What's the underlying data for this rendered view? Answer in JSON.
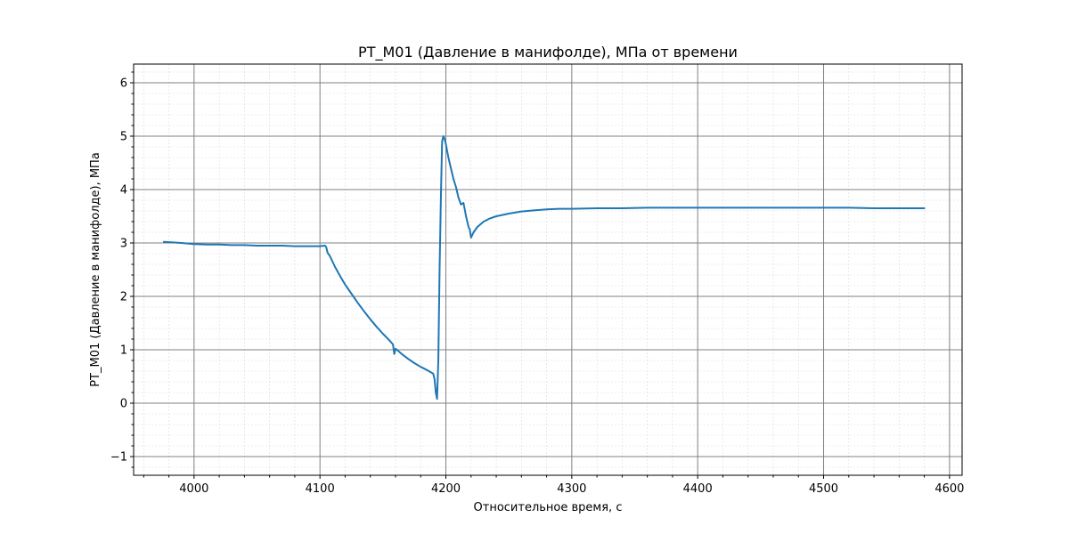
{
  "chart_data": {
    "type": "line",
    "title": "PT_M01 (Давление в манифолде), МПа от времени",
    "xlabel": "Относительное время, с",
    "ylabel": "PT_M01 (Давление в манифолде), МПа",
    "xlim": [
      3952,
      4610
    ],
    "ylim": [
      -1.35,
      6.35
    ],
    "xticks": [
      4000,
      4100,
      4200,
      4300,
      4400,
      4500,
      4600
    ],
    "xtick_labels": [
      "4000",
      "4100",
      "4200",
      "4300",
      "4400",
      "4500",
      "4600"
    ],
    "yticks": [
      -1,
      0,
      1,
      2,
      3,
      4,
      5,
      6
    ],
    "ytick_labels": [
      "−1",
      "0",
      "1",
      "2",
      "3",
      "4",
      "5",
      "6"
    ],
    "grid": true,
    "minor_grid": true,
    "series": [
      {
        "color": "#1f77b4",
        "x": [
          3976,
          3990,
          4000,
          4010,
          4020,
          4030,
          4040,
          4050,
          4060,
          4070,
          4080,
          4090,
          4100,
          4104,
          4105,
          4106,
          4108,
          4112,
          4116,
          4120,
          4125,
          4130,
          4135,
          4140,
          4145,
          4150,
          4155,
          4158,
          4159,
          4160,
          4165,
          4170,
          4175,
          4180,
          4185,
          4188,
          4190,
          4191,
          4192,
          4193,
          4194,
          4195,
          4196,
          4197,
          4198,
          4199,
          4200,
          4202,
          4204,
          4206,
          4208,
          4210,
          4212,
          4214,
          4216,
          4218,
          4219,
          4220,
          4222,
          4225,
          4230,
          4235,
          4240,
          4250,
          4260,
          4270,
          4280,
          4290,
          4300,
          4320,
          4340,
          4360,
          4380,
          4400,
          4420,
          4440,
          4460,
          4480,
          4500,
          4520,
          4540,
          4560,
          4580
        ],
        "y": [
          3.02,
          3.0,
          2.98,
          2.97,
          2.97,
          2.96,
          2.96,
          2.95,
          2.95,
          2.95,
          2.94,
          2.94,
          2.94,
          2.95,
          2.92,
          2.82,
          2.75,
          2.55,
          2.38,
          2.22,
          2.05,
          1.88,
          1.72,
          1.57,
          1.43,
          1.3,
          1.18,
          1.1,
          0.92,
          1.02,
          0.92,
          0.83,
          0.75,
          0.68,
          0.62,
          0.58,
          0.55,
          0.45,
          0.2,
          0.08,
          0.8,
          2.5,
          3.8,
          4.9,
          5.0,
          4.95,
          4.85,
          4.6,
          4.4,
          4.2,
          4.05,
          3.85,
          3.72,
          3.75,
          3.5,
          3.3,
          3.25,
          3.1,
          3.2,
          3.3,
          3.4,
          3.46,
          3.5,
          3.55,
          3.59,
          3.61,
          3.63,
          3.64,
          3.64,
          3.65,
          3.65,
          3.66,
          3.66,
          3.66,
          3.66,
          3.66,
          3.66,
          3.66,
          3.66,
          3.66,
          3.65,
          3.65,
          3.65
        ]
      }
    ]
  }
}
